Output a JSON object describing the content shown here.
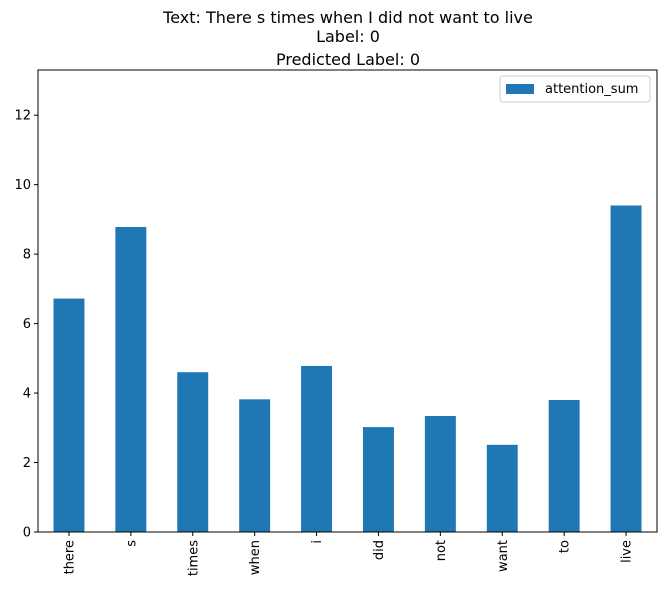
{
  "chart_data": {
    "type": "bar",
    "title_lines": [
      "Text: There s times when I did not want to live",
      "Label: 0",
      "Predicted Label: 0"
    ],
    "categories": [
      "there",
      "s",
      "times",
      "when",
      "i",
      "did",
      "not",
      "want",
      "to",
      "live"
    ],
    "series": [
      {
        "name": "attention_sum",
        "color": "#1f77b4",
        "values": [
          6.72,
          8.78,
          4.6,
          3.82,
          4.78,
          3.02,
          3.34,
          2.51,
          3.8,
          9.4
        ]
      }
    ],
    "ylim": [
      0,
      13.3
    ],
    "yticks": [
      0,
      2,
      4,
      6,
      8,
      10,
      12
    ],
    "xlabel": "",
    "ylabel": "",
    "grid": false,
    "legend_position": "top-right"
  }
}
